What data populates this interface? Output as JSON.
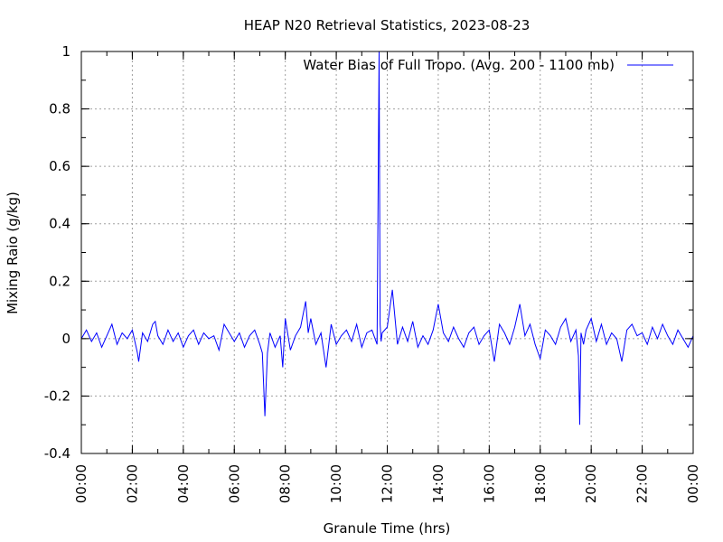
{
  "chart_data": {
    "type": "line",
    "title": "HEAP N20 Retrieval Statistics, 2023-08-23",
    "xlabel": "Granule Time (hrs)",
    "ylabel": "Mixing Raio (g/kg)",
    "xlim": [
      0,
      24
    ],
    "ylim": [
      -0.4,
      1
    ],
    "x_tick_labels": [
      "00:00",
      "02:00",
      "04:00",
      "06:00",
      "08:00",
      "10:00",
      "12:00",
      "14:00",
      "16:00",
      "18:00",
      "20:00",
      "22:00",
      "00:00"
    ],
    "y_tick_labels": [
      "-0.4",
      "-0.2",
      "0",
      "0.2",
      "0.4",
      "0.6",
      "0.8",
      "1"
    ],
    "grid": true,
    "legend_position": "top-right",
    "series": [
      {
        "name": "Water Bias of Full Tropo. (Avg. 200 - 1100 mb)",
        "color": "#0000ff",
        "x": [
          0.0,
          0.2,
          0.4,
          0.6,
          0.8,
          1.0,
          1.2,
          1.4,
          1.6,
          1.8,
          2.0,
          2.2,
          2.25,
          2.4,
          2.6,
          2.8,
          2.9,
          3.0,
          3.2,
          3.4,
          3.6,
          3.8,
          4.0,
          4.2,
          4.4,
          4.6,
          4.8,
          5.0,
          5.2,
          5.4,
          5.6,
          5.8,
          6.0,
          6.2,
          6.4,
          6.6,
          6.8,
          7.0,
          7.1,
          7.2,
          7.3,
          7.4,
          7.6,
          7.8,
          7.9,
          8.0,
          8.2,
          8.4,
          8.6,
          8.8,
          8.9,
          9.0,
          9.2,
          9.4,
          9.6,
          9.8,
          10.0,
          10.2,
          10.4,
          10.6,
          10.8,
          11.0,
          11.2,
          11.4,
          11.6,
          11.68,
          11.72,
          11.76,
          11.8,
          12.0,
          12.2,
          12.4,
          12.6,
          12.8,
          13.0,
          13.2,
          13.4,
          13.6,
          13.8,
          14.0,
          14.2,
          14.4,
          14.6,
          14.8,
          15.0,
          15.2,
          15.4,
          15.6,
          15.8,
          16.0,
          16.2,
          16.4,
          16.6,
          16.8,
          17.0,
          17.2,
          17.4,
          17.6,
          17.8,
          18.0,
          18.2,
          18.4,
          18.6,
          18.8,
          19.0,
          19.2,
          19.4,
          19.5,
          19.55,
          19.6,
          19.7,
          19.8,
          20.0,
          20.2,
          20.4,
          20.6,
          20.8,
          21.0,
          21.2,
          21.4,
          21.6,
          21.8,
          22.0,
          22.2,
          22.4,
          22.6,
          22.8,
          23.0,
          23.2,
          23.4,
          23.6,
          23.8,
          24.0
        ],
        "y": [
          0.0,
          0.03,
          -0.01,
          0.02,
          -0.03,
          0.01,
          0.05,
          -0.02,
          0.02,
          0.0,
          0.03,
          -0.05,
          -0.08,
          0.02,
          -0.01,
          0.05,
          0.06,
          0.01,
          -0.02,
          0.03,
          -0.01,
          0.02,
          -0.03,
          0.01,
          0.03,
          -0.02,
          0.02,
          0.0,
          0.01,
          -0.04,
          0.05,
          0.02,
          -0.01,
          0.02,
          -0.03,
          0.01,
          0.03,
          -0.02,
          -0.05,
          -0.27,
          -0.05,
          0.02,
          -0.03,
          0.01,
          -0.1,
          0.07,
          -0.04,
          0.01,
          0.04,
          0.13,
          0.02,
          0.07,
          -0.02,
          0.02,
          -0.1,
          0.05,
          -0.02,
          0.01,
          0.03,
          -0.01,
          0.05,
          -0.03,
          0.02,
          0.03,
          -0.02,
          1.0,
          0.05,
          -0.01,
          0.02,
          0.04,
          0.17,
          -0.02,
          0.04,
          -0.01,
          0.06,
          -0.03,
          0.01,
          -0.02,
          0.03,
          0.12,
          0.02,
          -0.01,
          0.04,
          0.0,
          -0.03,
          0.02,
          0.04,
          -0.02,
          0.01,
          0.03,
          -0.08,
          0.05,
          0.02,
          -0.02,
          0.04,
          0.12,
          0.01,
          0.05,
          -0.02,
          -0.07,
          0.03,
          0.01,
          -0.02,
          0.04,
          0.07,
          -0.01,
          0.03,
          -0.06,
          -0.3,
          0.02,
          -0.02,
          0.03,
          0.07,
          -0.01,
          0.05,
          -0.02,
          0.02,
          0.0,
          -0.08,
          0.03,
          0.05,
          0.01,
          0.02,
          -0.02,
          0.04,
          0.0,
          0.05,
          0.01,
          -0.02,
          0.03,
          0.0,
          -0.03,
          0.01
        ]
      }
    ]
  }
}
